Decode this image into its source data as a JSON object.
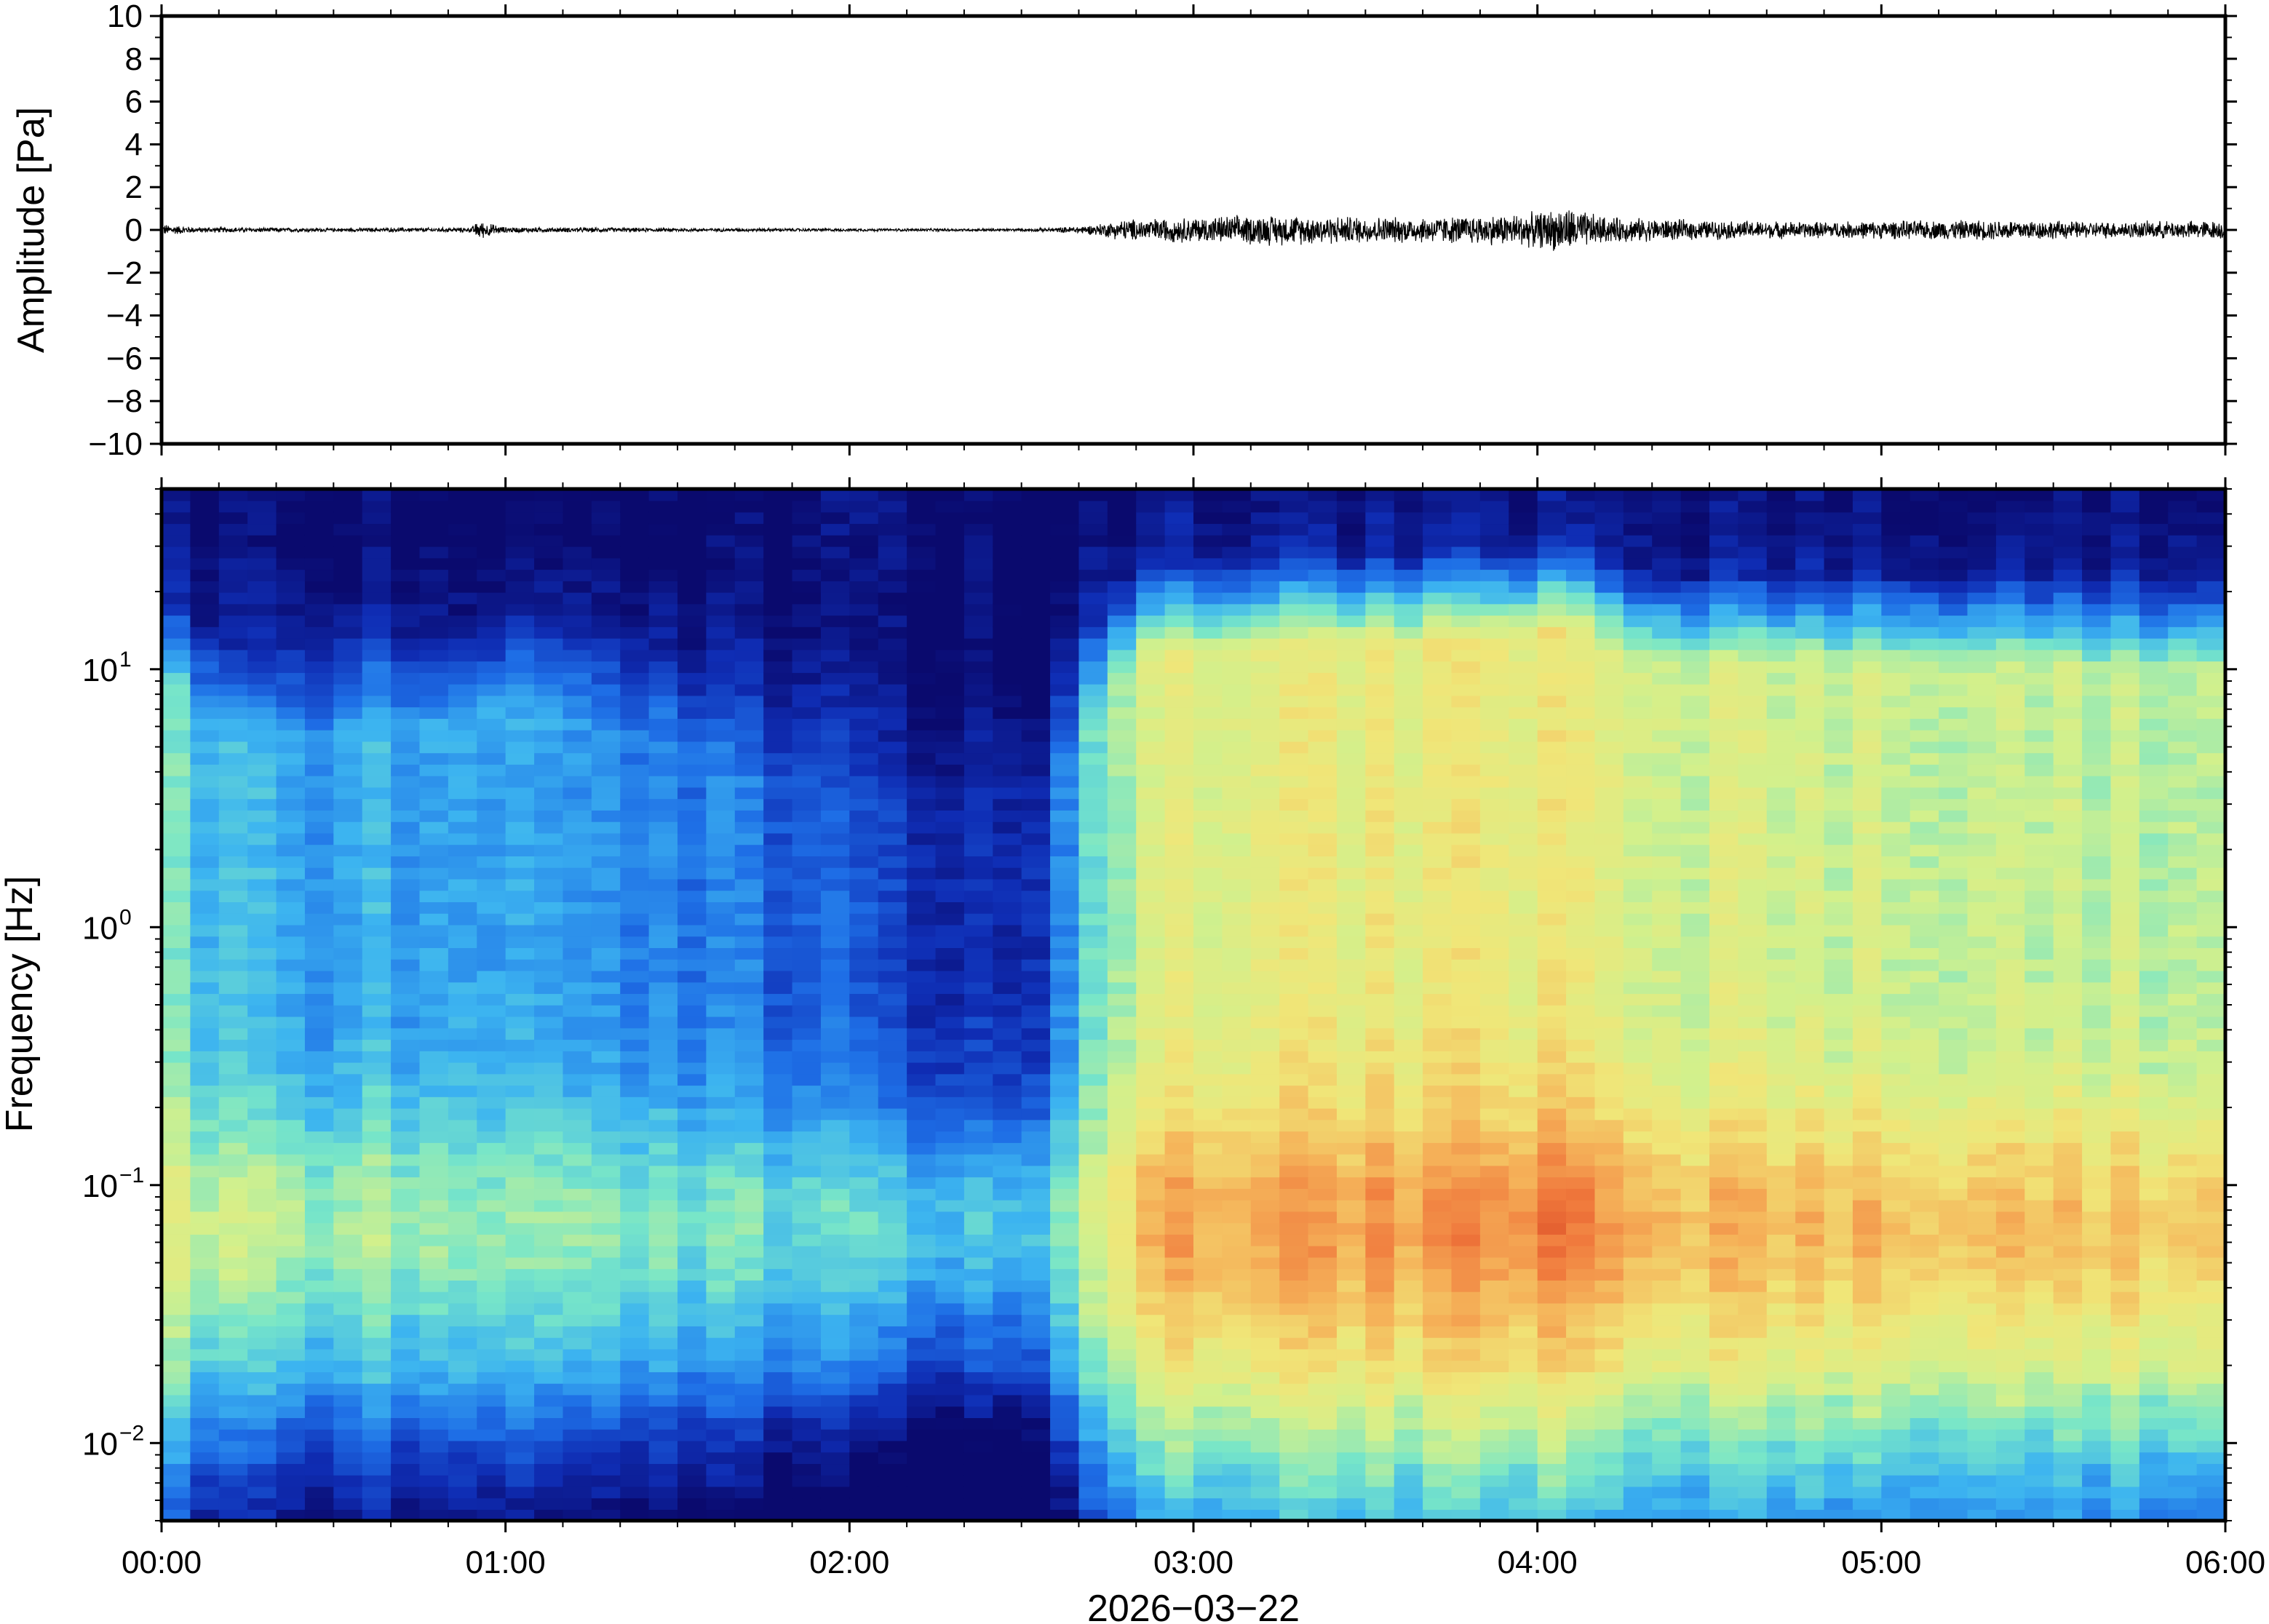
{
  "chart_data": [
    {
      "type": "line",
      "panel": "waveform",
      "ylabel": "Amplitude [Pa]",
      "ylim": [
        -10,
        10
      ],
      "yticks": [
        {
          "value": 10,
          "label": "10"
        },
        {
          "value": 8,
          "label": "8"
        },
        {
          "value": 6,
          "label": "6"
        },
        {
          "value": 4,
          "label": "4"
        },
        {
          "value": 2,
          "label": "2"
        },
        {
          "value": 0,
          "label": "0"
        },
        {
          "value": -2,
          "label": "−2"
        },
        {
          "value": -4,
          "label": "−4"
        },
        {
          "value": -6,
          "label": "−6"
        },
        {
          "value": -8,
          "label": "−8"
        },
        {
          "value": -10,
          "label": "−10"
        }
      ],
      "xlim": [
        "00:00",
        "06:00"
      ],
      "line_color": "#000000",
      "envelope": {
        "x_hours": [
          0.0,
          0.1,
          0.5,
          0.9,
          0.92,
          1.0,
          1.5,
          2.0,
          2.5,
          2.6,
          2.7,
          2.8,
          3.0,
          3.2,
          3.4,
          3.6,
          3.8,
          4.0,
          4.08,
          4.2,
          4.5,
          4.8,
          5.0,
          5.4,
          5.6,
          6.0
        ],
        "amplitude_pa": [
          0.25,
          0.12,
          0.08,
          0.1,
          0.4,
          0.12,
          0.08,
          0.06,
          0.06,
          0.1,
          0.2,
          0.45,
          0.55,
          0.65,
          0.6,
          0.55,
          0.6,
          0.75,
          1.0,
          0.55,
          0.4,
          0.35,
          0.38,
          0.45,
          0.35,
          0.4
        ]
      }
    },
    {
      "type": "heatmap",
      "panel": "spectrogram",
      "ylabel": "Frequency [Hz]",
      "xlabel": "2026−03−22",
      "yscale": "log",
      "ylim_hz": [
        0.005,
        50
      ],
      "yticks": [
        {
          "value": 10,
          "base": "10",
          "exp": "1"
        },
        {
          "value": 1,
          "base": "10",
          "exp": "0"
        },
        {
          "value": 0.1,
          "base": "10",
          "exp": "−1"
        },
        {
          "value": 0.01,
          "base": "10",
          "exp": "−2"
        }
      ],
      "xticks": [
        "00:00",
        "01:00",
        "02:00",
        "03:00",
        "04:00",
        "05:00",
        "06:00"
      ],
      "xlim_hours": [
        0,
        6
      ],
      "colormap": [
        "#0a0a6e",
        "#0f2db4",
        "#1e6ee6",
        "#3cb4f0",
        "#78e6c8",
        "#d2f08c",
        "#f0e678",
        "#f5b45a",
        "#f0783c",
        "#d23c1e"
      ],
      "colorlevel_profile": {
        "description_free": true,
        "time_hours": [
          0.0,
          0.15,
          0.3,
          0.45,
          0.6,
          0.75,
          0.9,
          1.05,
          1.2,
          1.35,
          1.5,
          1.65,
          1.8,
          1.95,
          2.1,
          2.25,
          2.4,
          2.55,
          2.7,
          2.85,
          3.0,
          3.3,
          3.6,
          3.9,
          4.1,
          4.25,
          4.5,
          4.8,
          5.1,
          5.4,
          5.7,
          6.0
        ],
        "upper_cutoff_hz": [
          20,
          13,
          11,
          12,
          14,
          13,
          15,
          17,
          15,
          13,
          11,
          9,
          7,
          6,
          4,
          3.2,
          3.5,
          4.5,
          15,
          25,
          26,
          27,
          28,
          29,
          32,
          24,
          23,
          23,
          23,
          23,
          22,
          22
        ],
        "high_freq_level": [
          0.45,
          0.35,
          0.32,
          0.3,
          0.33,
          0.3,
          0.35,
          0.33,
          0.3,
          0.28,
          0.26,
          0.24,
          0.2,
          0.18,
          0.12,
          0.1,
          0.1,
          0.14,
          0.4,
          0.58,
          0.6,
          0.62,
          0.63,
          0.64,
          0.64,
          0.58,
          0.57,
          0.56,
          0.55,
          0.55,
          0.54,
          0.53
        ],
        "low_band_peak_level": [
          0.6,
          0.55,
          0.52,
          0.5,
          0.52,
          0.5,
          0.52,
          0.5,
          0.5,
          0.48,
          0.46,
          0.45,
          0.42,
          0.4,
          0.38,
          0.36,
          0.36,
          0.4,
          0.55,
          0.78,
          0.8,
          0.8,
          0.82,
          0.84,
          0.88,
          0.8,
          0.76,
          0.76,
          0.75,
          0.76,
          0.74,
          0.74
        ]
      }
    }
  ]
}
